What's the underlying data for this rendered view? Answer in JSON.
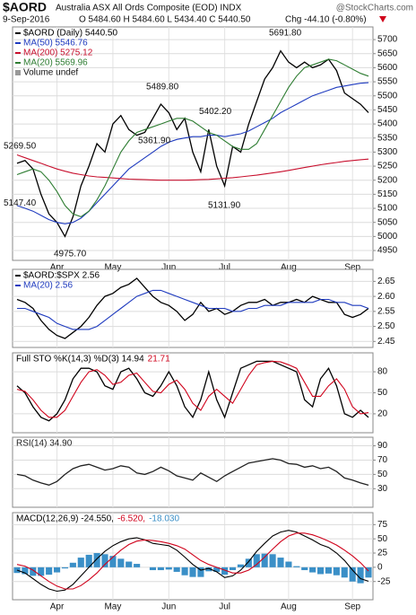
{
  "header": {
    "symbol": "$AORD",
    "name": "Australia ASX All Ords Composite (EOD) INDX",
    "date": "9-Sep-2016",
    "ohlc": "O 5484.60 H 5484.60 L 5434.40 C 5440.50",
    "change": "Chg -44.10 (-0.80%)",
    "watermark": "@StockCharts.com"
  },
  "chart_data": [
    {
      "type": "line",
      "categories": [
        null,
        null,
        null,
        null,
        null,
        "Apr",
        null,
        null,
        null,
        null,
        null,
        null,
        "May",
        null,
        null,
        null,
        null,
        null,
        null,
        "Jun",
        null,
        null,
        null,
        null,
        null,
        null,
        "Jul",
        null,
        null,
        null,
        null,
        null,
        null,
        null,
        "Aug",
        null,
        null,
        null,
        null,
        null,
        null,
        null,
        "Sep",
        null,
        null
      ],
      "ylim": [
        4915,
        5745
      ],
      "yticks": [
        4950,
        5000,
        5050,
        5100,
        5150,
        5200,
        5250,
        5300,
        5350,
        5400,
        5450,
        5500,
        5550,
        5600,
        5650,
        5700
      ],
      "grid": true,
      "series": [
        {
          "name": "$AORD (Daily) 5440.50",
          "color": "#000000",
          "values": [
            5260,
            5270,
            5240,
            5150,
            5080,
            5050,
            5000,
            5070,
            5180,
            5250,
            5330,
            5300,
            5400,
            5430,
            5380,
            5360,
            5370,
            5420,
            5470,
            5440,
            5380,
            5420,
            5300,
            5230,
            5380,
            5250,
            5180,
            5320,
            5300,
            5400,
            5480,
            5560,
            5600,
            5660,
            5620,
            5600,
            5620,
            5600,
            5610,
            5630,
            5590,
            5510,
            5490,
            5470,
            5440.5
          ]
        },
        {
          "name": "MA(50) 5546.76",
          "color": "#1f3bbf",
          "values": [
            5110,
            5100,
            5090,
            5075,
            5060,
            5050,
            5045,
            5050,
            5065,
            5090,
            5120,
            5150,
            5180,
            5210,
            5240,
            5260,
            5280,
            5300,
            5320,
            5335,
            5345,
            5350,
            5355,
            5355,
            5360,
            5360,
            5355,
            5360,
            5365,
            5375,
            5390,
            5405,
            5420,
            5440,
            5455,
            5470,
            5485,
            5500,
            5510,
            5520,
            5530,
            5535,
            5540,
            5545,
            5546.76
          ]
        },
        {
          "name": "MA(200) 5275.12",
          "color": "#c8102e",
          "values": [
            5290,
            5280,
            5270,
            5260,
            5250,
            5240,
            5232,
            5225,
            5220,
            5215,
            5212,
            5210,
            5208,
            5206,
            5204,
            5203,
            5202,
            5201,
            5200,
            5200,
            5200,
            5200,
            5201,
            5202,
            5203,
            5205,
            5207,
            5209,
            5212,
            5215,
            5218,
            5222,
            5226,
            5230,
            5235,
            5240,
            5245,
            5250,
            5255,
            5259,
            5263,
            5267,
            5270,
            5273,
            5275.12
          ]
        },
        {
          "name": "MA(20) 5569.96",
          "color": "#2e7d32",
          "values": [
            5220,
            5230,
            5240,
            5230,
            5200,
            5160,
            5110,
            5080,
            5070,
            5090,
            5130,
            5180,
            5240,
            5300,
            5340,
            5370,
            5380,
            5390,
            5400,
            5410,
            5420,
            5420,
            5410,
            5390,
            5370,
            5360,
            5340,
            5320,
            5310,
            5310,
            5330,
            5380,
            5430,
            5480,
            5530,
            5570,
            5600,
            5610,
            5620,
            5630,
            5625,
            5610,
            5595,
            5580,
            5569.96
          ]
        }
      ],
      "volume_label": "Volume undef",
      "annotations": [
        {
          "value": 5269.5,
          "label": "5269.50"
        },
        {
          "value": 5147.4,
          "label": "5147.40"
        },
        {
          "value": 4975.7,
          "label": "4975.70"
        },
        {
          "value": 5489.8,
          "label": "5489.80"
        },
        {
          "value": 5361.9,
          "label": "5361.90"
        },
        {
          "value": 5402.2,
          "label": "5402.20"
        },
        {
          "value": 5131.9,
          "label": "5131.90"
        },
        {
          "value": 5691.8,
          "label": "5691.80"
        }
      ]
    },
    {
      "type": "line",
      "ylim": [
        2.43,
        2.69
      ],
      "yticks": [
        2.45,
        {
          "value": 2.5,
          "label": "2.50"
        },
        2.55,
        {
          "value": 2.6,
          "label": "2.60"
        },
        2.65
      ],
      "grid": true,
      "series": [
        {
          "name": "$AORD:$SPX 2.56",
          "color": "#000000",
          "values": [
            2.59,
            2.58,
            2.56,
            2.52,
            2.49,
            2.47,
            2.46,
            2.48,
            2.5,
            2.53,
            2.57,
            2.6,
            2.61,
            2.63,
            2.64,
            2.66,
            2.63,
            2.6,
            2.58,
            2.57,
            2.55,
            2.52,
            2.54,
            2.58,
            2.55,
            2.56,
            2.54,
            2.55,
            2.57,
            2.58,
            2.58,
            2.59,
            2.57,
            2.58,
            2.58,
            2.59,
            2.58,
            2.6,
            2.59,
            2.58,
            2.58,
            2.54,
            2.53,
            2.54,
            2.56
          ]
        },
        {
          "name": "MA(20) 2.56",
          "color": "#1f3bbf",
          "values": [
            2.56,
            2.56,
            2.55,
            2.54,
            2.53,
            2.51,
            2.5,
            2.49,
            2.49,
            2.49,
            2.5,
            2.52,
            2.54,
            2.56,
            2.58,
            2.6,
            2.61,
            2.62,
            2.62,
            2.61,
            2.6,
            2.59,
            2.58,
            2.57,
            2.56,
            2.56,
            2.56,
            2.55,
            2.55,
            2.56,
            2.56,
            2.57,
            2.57,
            2.57,
            2.58,
            2.58,
            2.58,
            2.58,
            2.59,
            2.59,
            2.58,
            2.58,
            2.57,
            2.57,
            2.56
          ]
        }
      ]
    },
    {
      "type": "line",
      "ylim": [
        -7,
        107
      ],
      "yticks": [
        20,
        50,
        80
      ],
      "grid": true,
      "series": [
        {
          "name": "Full STO %K(14,3) %D(3) 14.94",
          "color": "#000000",
          "values": [
            60,
            50,
            30,
            15,
            10,
            20,
            40,
            70,
            85,
            85,
            80,
            60,
            55,
            80,
            85,
            70,
            50,
            45,
            60,
            80,
            60,
            30,
            15,
            40,
            80,
            40,
            15,
            50,
            85,
            90,
            95,
            95,
            95,
            90,
            85,
            80,
            40,
            30,
            70,
            85,
            60,
            20,
            15,
            25,
            14.94
          ]
        },
        {
          "name": "21.71",
          "color": "#d0021b",
          "values": [
            55,
            52,
            40,
            25,
            15,
            15,
            25,
            45,
            65,
            80,
            83,
            75,
            62,
            65,
            75,
            78,
            65,
            52,
            50,
            62,
            68,
            55,
            35,
            25,
            45,
            55,
            45,
            35,
            55,
            75,
            90,
            93,
            95,
            94,
            90,
            85,
            65,
            45,
            45,
            60,
            70,
            55,
            30,
            20,
            21.71
          ]
        }
      ]
    },
    {
      "type": "line",
      "ylim": [
        4,
        102
      ],
      "yticks": [
        30,
        50,
        70,
        90
      ],
      "grid": true,
      "series": [
        {
          "name": "RSI(14) 34.90",
          "color": "#222222",
          "values": [
            50,
            48,
            42,
            38,
            35,
            40,
            50,
            58,
            62,
            64,
            60,
            56,
            58,
            62,
            60,
            52,
            50,
            54,
            60,
            55,
            48,
            45,
            42,
            52,
            46,
            40,
            48,
            54,
            60,
            66,
            68,
            70,
            72,
            70,
            65,
            64,
            60,
            62,
            58,
            60,
            54,
            45,
            42,
            38,
            34.9
          ]
        }
      ]
    },
    {
      "type": "line",
      "categories": [
        null,
        null,
        null,
        null,
        null,
        "Apr",
        null,
        null,
        null,
        null,
        null,
        null,
        "May",
        null,
        null,
        null,
        null,
        null,
        null,
        "Jun",
        null,
        null,
        null,
        null,
        null,
        null,
        "Jul",
        null,
        null,
        null,
        null,
        null,
        null,
        null,
        "Aug",
        null,
        null,
        null,
        null,
        null,
        null,
        null,
        "Sep",
        null,
        null
      ],
      "ylim": [
        -57,
        96
      ],
      "yticks": [
        -25,
        0,
        25,
        50,
        75
      ],
      "grid": true,
      "series": [
        {
          "name": "-18.030",
          "color": "#3a8fc7",
          "style": "histogram",
          "values": [
            -10,
            -12,
            -15,
            -15,
            -13,
            -9,
            -2,
            8,
            17,
            22,
            25,
            23,
            20,
            15,
            10,
            6,
            0,
            -5,
            -5,
            -4,
            -8,
            -14,
            -17,
            -17,
            -7,
            -8,
            -13,
            -5,
            5,
            15,
            23,
            24,
            23,
            17,
            10,
            2,
            -5,
            -9,
            -12,
            -11,
            -14,
            -18,
            -25,
            -28,
            -18.03
          ]
        },
        {
          "name": "MACD(12,26,9) -24.550,",
          "color": "#000000",
          "values": [
            -5,
            -10,
            -20,
            -30,
            -38,
            -42,
            -40,
            -30,
            -15,
            0,
            15,
            28,
            38,
            45,
            50,
            52,
            48,
            42,
            40,
            38,
            30,
            18,
            5,
            -5,
            -2,
            -8,
            -18,
            -15,
            -5,
            10,
            28,
            42,
            55,
            62,
            65,
            62,
            55,
            48,
            40,
            35,
            25,
            12,
            -5,
            -20,
            -24.55
          ]
        },
        {
          "name": "-6.520,",
          "color": "#d0021b",
          "values": [
            5,
            2,
            -5,
            -15,
            -25,
            -33,
            -38,
            -38,
            -32,
            -22,
            -10,
            5,
            18,
            30,
            40,
            46,
            48,
            47,
            45,
            42,
            38,
            32,
            22,
            12,
            5,
            0,
            -5,
            -10,
            -10,
            -5,
            5,
            18,
            32,
            45,
            55,
            60,
            60,
            57,
            52,
            46,
            39,
            30,
            20,
            8,
            -6.52
          ]
        }
      ]
    }
  ]
}
